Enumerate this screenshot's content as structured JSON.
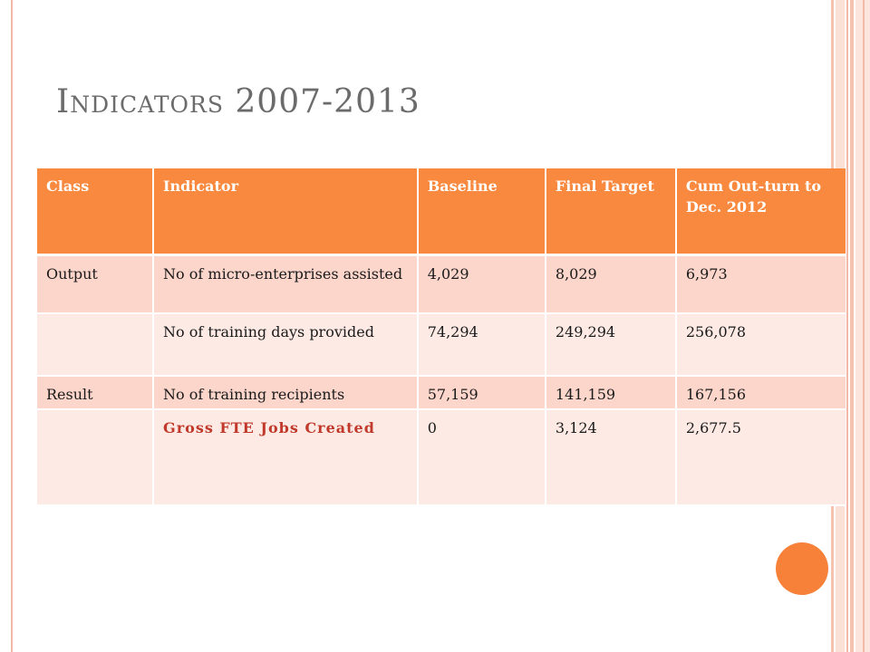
{
  "slide": {
    "title": "Indicators 2007-2013"
  },
  "table": {
    "headers": [
      "Class",
      "Indicator",
      "Baseline",
      "Final Target",
      "Cum Out-turn to Dec. 2012"
    ],
    "rows": [
      [
        "Output",
        "No of micro-enterprises assisted",
        "4,029",
        "8,029",
        "6,973"
      ],
      [
        "",
        "No of training days provided",
        "74,294",
        "249,294",
        "256,078"
      ],
      [
        "Result",
        "No of training recipients",
        "57,159",
        "141,159",
        "167,156"
      ],
      [
        "",
        "Gross FTE Jobs Created",
        "0",
        "3,124",
        "2,677.5"
      ]
    ]
  },
  "colors": {
    "header_bg": "#f8893f",
    "row_odd_bg": "#fcd5cb",
    "row_even_bg": "#fdeae4",
    "highlight_text": "#c0392b",
    "accent_circle": "#f8813a"
  }
}
